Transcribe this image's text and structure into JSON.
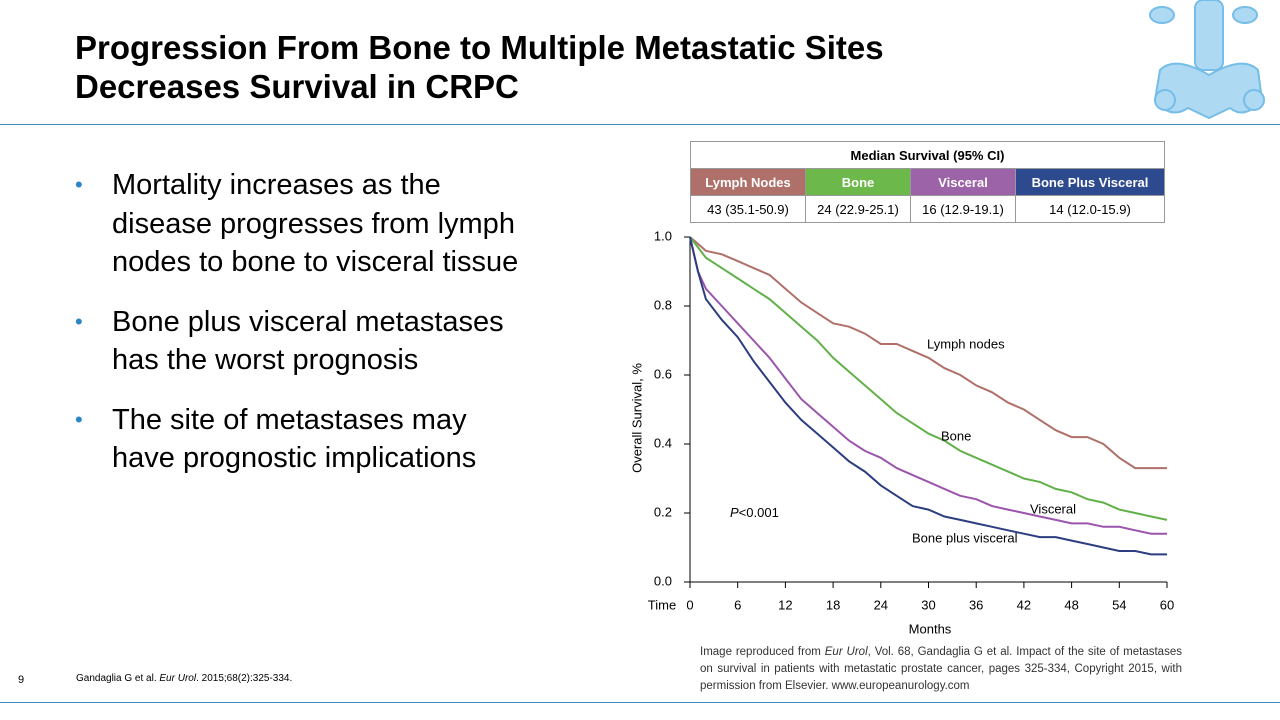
{
  "slide": {
    "title_lines": [
      "Progression From Bone to Multiple Metastatic Sites",
      "Decreases Survival in CRPC"
    ],
    "bullets": [
      [
        "Mortality increases as the",
        "disease progresses from lymph",
        "nodes to bone to visceral tissue"
      ],
      [
        "Bone plus visceral metastases",
        "has the worst prognosis"
      ],
      [
        "The site of metastases may",
        "have prognostic implications"
      ]
    ],
    "page_number": "9",
    "citation_parts": [
      "Gandaglia G et al. ",
      "Eur Urol",
      ". 2015;68(2):325-334."
    ],
    "credit_parts": [
      "Image reproduced from ",
      "Eur Urol",
      ", Vol. 68, Gandaglia G et al. Impact of the site of metastases on survival  in patients with metastatic prostate cancer, pages 325-334, Copyright 2015, with permission from Elsevier. www.europeanurology.com"
    ]
  },
  "table": {
    "title": "Median Survival (95% CI)",
    "headers": [
      "Lymph Nodes",
      "Bone",
      "Visceral",
      "Bone Plus Visceral"
    ],
    "row": [
      "43 (35.1-50.9)",
      "24 (22.9-25.1)",
      "16 (12.9-19.1)",
      "14 (12.0-15.9)"
    ]
  },
  "chart_data": {
    "type": "line",
    "xlabel": "Months",
    "ylabel": "Overall Survival, %",
    "x_axis_prefix": "Time",
    "annotation_parts": [
      "P",
      "<0.001"
    ],
    "xlim": [
      0,
      60
    ],
    "xticks": [
      0,
      6,
      12,
      18,
      24,
      30,
      36,
      42,
      48,
      54,
      60
    ],
    "ylim": [
      0,
      1
    ],
    "yticks": [
      {
        "value": 0,
        "label": "0.0"
      },
      0.2,
      0.4,
      0.6,
      0.8,
      {
        "value": 1,
        "label": "1.0"
      }
    ],
    "x": [
      0,
      1,
      2,
      4,
      6,
      8,
      10,
      12,
      14,
      16,
      18,
      20,
      22,
      24,
      26,
      28,
      30,
      32,
      34,
      36,
      38,
      40,
      42,
      44,
      46,
      48,
      50,
      52,
      54,
      56,
      58,
      60
    ],
    "series": [
      {
        "name": "Lymph nodes",
        "color": "#b0706a",
        "values": [
          1.0,
          0.98,
          0.96,
          0.95,
          0.93,
          0.91,
          0.89,
          0.85,
          0.81,
          0.78,
          0.75,
          0.74,
          0.72,
          0.69,
          0.69,
          0.67,
          0.65,
          0.62,
          0.6,
          0.57,
          0.55,
          0.52,
          0.5,
          0.47,
          0.44,
          0.42,
          0.42,
          0.4,
          0.36,
          0.33,
          0.33,
          0.33
        ]
      },
      {
        "name": "Bone",
        "color": "#62b04a",
        "values": [
          1.0,
          0.97,
          0.94,
          0.91,
          0.88,
          0.85,
          0.82,
          0.78,
          0.74,
          0.7,
          0.65,
          0.61,
          0.57,
          0.53,
          0.49,
          0.46,
          0.43,
          0.41,
          0.38,
          0.36,
          0.34,
          0.32,
          0.3,
          0.29,
          0.27,
          0.26,
          0.24,
          0.23,
          0.21,
          0.2,
          0.19,
          0.18
        ]
      },
      {
        "name": "Visceral",
        "color": "#9c55ac",
        "values": [
          1.0,
          0.9,
          0.85,
          0.8,
          0.75,
          0.7,
          0.65,
          0.59,
          0.53,
          0.49,
          0.45,
          0.41,
          0.38,
          0.36,
          0.33,
          0.31,
          0.29,
          0.27,
          0.25,
          0.24,
          0.22,
          0.21,
          0.2,
          0.19,
          0.18,
          0.17,
          0.17,
          0.16,
          0.16,
          0.15,
          0.14,
          0.14
        ]
      },
      {
        "name": "Bone plus visceral",
        "color": "#2c3e80",
        "values": [
          1.0,
          0.9,
          0.82,
          0.76,
          0.71,
          0.64,
          0.58,
          0.52,
          0.47,
          0.43,
          0.39,
          0.35,
          0.32,
          0.28,
          0.25,
          0.22,
          0.21,
          0.19,
          0.18,
          0.17,
          0.16,
          0.15,
          0.14,
          0.13,
          0.13,
          0.12,
          0.11,
          0.1,
          0.09,
          0.09,
          0.08,
          0.08
        ]
      }
    ]
  }
}
